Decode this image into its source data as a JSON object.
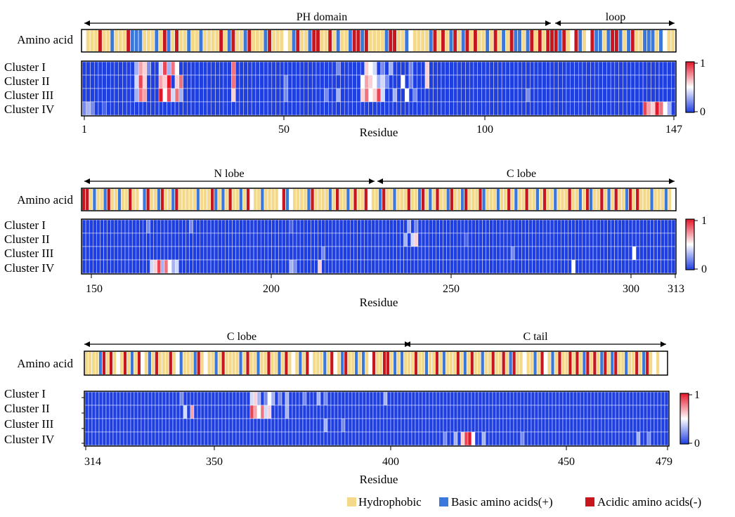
{
  "colors": {
    "hydrophobic": "#f5d98b",
    "basic": "#3b78dc",
    "acidic": "#c8161e",
    "heat_low": "#1f3fe0",
    "heat_mid": "#ffffff",
    "heat_high": "#e5162a"
  },
  "legend": {
    "hydrophobic": "Hydrophobic",
    "basic": "Basic amino acids(+)",
    "acidic": "Acidic amino acids(-)"
  },
  "chart_data": [
    {
      "type": "heatmap",
      "row_label": "Amino acid",
      "cluster_labels": [
        "Cluster I",
        "Cluster II",
        "Cluster III",
        "Cluster IV"
      ],
      "xlabel": "Residue",
      "xlim": [
        1,
        147
      ],
      "xticks": [
        "1",
        "50",
        "100",
        "147"
      ],
      "colorbar_ticks": [
        "1",
        "0"
      ],
      "regions": [
        {
          "label": "PH domain",
          "start": 1,
          "end": 117
        },
        {
          "label": "loop",
          "start": 117,
          "end": 147
        }
      ],
      "hydrophobic": [
        2,
        3,
        4,
        6,
        7,
        9,
        10,
        11,
        16,
        17,
        18,
        20,
        23,
        25,
        26,
        28,
        29,
        31,
        32,
        33,
        34,
        36,
        39,
        40,
        43,
        44,
        45,
        48,
        49,
        50,
        52,
        55,
        56,
        60,
        61,
        63,
        65,
        66,
        72,
        73,
        74,
        75,
        79,
        80,
        83,
        84,
        85,
        86,
        89,
        91,
        94,
        97,
        99,
        100,
        102,
        104,
        106,
        110,
        113,
        115,
        121,
        125,
        130,
        135,
        138,
        139,
        143,
        146,
        147
      ],
      "basic": [
        8,
        13,
        14,
        15,
        19,
        22,
        27,
        30,
        37,
        41,
        46,
        53,
        57,
        64,
        67,
        70,
        76,
        81,
        87,
        92,
        95,
        101,
        105,
        108,
        109,
        111,
        119,
        124,
        128,
        129,
        131,
        134,
        136,
        140,
        141,
        142,
        144
      ],
      "acidic": [
        5,
        12,
        21,
        24,
        35,
        38,
        42,
        47,
        54,
        58,
        59,
        62,
        68,
        69,
        71,
        77,
        78,
        88,
        90,
        93,
        96,
        98,
        103,
        107,
        112,
        114,
        116,
        117,
        118,
        120,
        123,
        127,
        132,
        133,
        137
      ],
      "heat": [
        {
          "cluster": "Cluster I",
          "values": [
            [
              14,
              0.3
            ],
            [
              15,
              0.7
            ],
            [
              16,
              0.6
            ],
            [
              17,
              0.2
            ],
            [
              20,
              0.4
            ],
            [
              21,
              0.9
            ],
            [
              22,
              0.3
            ],
            [
              23,
              0.8
            ],
            [
              24,
              0.5
            ],
            [
              38,
              0.8
            ],
            [
              64,
              0.2
            ],
            [
              71,
              0.6
            ],
            [
              72,
              0.5
            ],
            [
              73,
              0.4
            ],
            [
              75,
              0.2
            ],
            [
              77,
              0.3
            ],
            [
              82,
              0.2
            ],
            [
              86,
              0.6
            ]
          ]
        },
        {
          "cluster": "Cluster II",
          "values": [
            [
              14,
              0.4
            ],
            [
              15,
              0.9
            ],
            [
              16,
              0.6
            ],
            [
              20,
              0.7
            ],
            [
              21,
              0.6
            ],
            [
              22,
              1.0
            ],
            [
              24,
              0.6
            ],
            [
              25,
              0.8
            ],
            [
              38,
              0.8
            ],
            [
              51,
              0.2
            ],
            [
              70,
              0.5
            ],
            [
              71,
              0.7
            ],
            [
              72,
              0.6
            ],
            [
              73,
              0.5
            ],
            [
              74,
              0.3
            ],
            [
              75,
              0.4
            ],
            [
              76,
              0.2
            ],
            [
              80,
              0.5
            ],
            [
              82,
              0.2
            ],
            [
              86,
              0.6
            ]
          ]
        },
        {
          "cluster": "Cluster III",
          "values": [
            [
              14,
              0.3
            ],
            [
              15,
              0.8
            ],
            [
              16,
              0.7
            ],
            [
              20,
              1.0
            ],
            [
              21,
              0.5
            ],
            [
              22,
              0.9
            ],
            [
              23,
              0.4
            ],
            [
              24,
              0.8
            ],
            [
              25,
              0.3
            ],
            [
              38,
              0.6
            ],
            [
              51,
              0.2
            ],
            [
              61,
              0.2
            ],
            [
              64,
              0.3
            ],
            [
              70,
              0.6
            ],
            [
              71,
              0.8
            ],
            [
              72,
              0.5
            ],
            [
              73,
              0.6
            ],
            [
              74,
              0.9
            ],
            [
              75,
              0.4
            ],
            [
              78,
              0.3
            ],
            [
              81,
              0.5
            ],
            [
              83,
              0.2
            ],
            [
              111,
              0.2
            ]
          ]
        },
        {
          "cluster": "Cluster IV",
          "values": [
            [
              1,
              0.2
            ],
            [
              2,
              0.3
            ],
            [
              3,
              0.2
            ],
            [
              6,
              0.1
            ],
            [
              140,
              0.9
            ],
            [
              141,
              0.7
            ],
            [
              142,
              0.6
            ],
            [
              143,
              1.0
            ],
            [
              144,
              0.8
            ],
            [
              145,
              0.5
            ],
            [
              146,
              0.3
            ]
          ]
        }
      ]
    },
    {
      "type": "heatmap",
      "row_label": "Amino acid",
      "cluster_labels": [
        "Cluster I",
        "Cluster II",
        "Cluster III",
        "Cluster IV"
      ],
      "xlabel": "Residue",
      "xlim": [
        148,
        313
      ],
      "xticks": [
        "150",
        "200",
        "250",
        "300",
        "313"
      ],
      "colorbar_ticks": [
        "1",
        "0"
      ],
      "regions": [
        {
          "label": "N lobe",
          "start": 148,
          "end": 230
        },
        {
          "label": "C lobe",
          "start": 230,
          "end": 313
        }
      ],
      "hydrophobic": [
        150,
        152,
        153,
        156,
        157,
        159,
        160,
        162,
        163,
        167,
        168,
        171,
        172,
        175,
        176,
        177,
        178,
        179,
        181,
        182,
        183,
        186,
        188,
        190,
        191,
        193,
        196,
        197,
        199,
        200,
        201,
        202,
        207,
        208,
        209,
        210,
        213,
        214,
        215,
        216,
        218,
        220,
        221,
        223,
        225,
        226,
        229,
        230,
        233,
        234,
        236,
        237,
        238,
        240,
        241,
        244,
        246,
        248,
        249,
        252,
        253,
        256,
        257,
        258,
        261,
        262,
        263,
        265,
        266,
        268,
        270,
        271,
        273,
        274,
        276,
        278,
        279,
        281,
        282,
        283,
        285,
        286,
        288,
        291,
        292,
        294,
        296,
        298,
        299,
        302,
        304,
        305,
        306,
        308,
        309,
        310,
        312
      ],
      "basic": [
        151,
        154,
        158,
        165,
        169,
        173,
        180,
        185,
        187,
        192,
        198,
        205,
        211,
        217,
        222,
        231,
        235,
        242,
        245,
        250,
        254,
        260,
        264,
        269,
        275,
        280,
        287,
        290,
        295,
        300,
        307,
        311
      ],
      "acidic": [
        148,
        149,
        155,
        161,
        166,
        170,
        174,
        184,
        189,
        194,
        204,
        212,
        219,
        224,
        227,
        232,
        239,
        243,
        247,
        251,
        255,
        259,
        267,
        272,
        277,
        284,
        289,
        293,
        297,
        301,
        303
      ],
      "heat": [
        {
          "cluster": "Cluster I",
          "values": [
            [
              166,
              0.2
            ],
            [
              178,
              0.2
            ],
            [
              206,
              0.1
            ],
            [
              239,
              0.3
            ],
            [
              241,
              0.2
            ]
          ]
        },
        {
          "cluster": "Cluster II",
          "values": [
            [
              238,
              0.3
            ],
            [
              240,
              0.4
            ],
            [
              241,
              0.6
            ],
            [
              255,
              0.1
            ]
          ]
        },
        {
          "cluster": "Cluster III",
          "values": [
            [
              215,
              0.2
            ],
            [
              268,
              0.2
            ],
            [
              302,
              0.5
            ]
          ]
        },
        {
          "cluster": "Cluster IV",
          "values": [
            [
              167,
              0.4
            ],
            [
              168,
              0.6
            ],
            [
              169,
              0.9
            ],
            [
              170,
              0.3
            ],
            [
              171,
              0.8
            ],
            [
              172,
              0.5
            ],
            [
              173,
              0.3
            ],
            [
              174,
              0.4
            ],
            [
              206,
              0.3
            ],
            [
              207,
              0.2
            ],
            [
              214,
              0.6
            ],
            [
              285,
              0.5
            ]
          ]
        }
      ]
    },
    {
      "type": "heatmap",
      "row_label": "Amino acid",
      "cluster_labels": [
        "Cluster I",
        "Cluster II",
        "Cluster III",
        "Cluster IV"
      ],
      "xlabel": "Residue",
      "xlim": [
        314,
        479
      ],
      "xticks": [
        "314",
        "350",
        "400",
        "450",
        "479"
      ],
      "colorbar_ticks": [
        "1",
        "0"
      ],
      "regions": [
        {
          "label": "C lobe",
          "start": 314,
          "end": 404
        },
        {
          "label": "C tail",
          "start": 404,
          "end": 479
        }
      ],
      "hydrophobic": [
        314,
        315,
        316,
        317,
        320,
        322,
        324,
        326,
        328,
        331,
        333,
        335,
        336,
        337,
        339,
        342,
        343,
        344,
        347,
        349,
        350,
        352,
        354,
        355,
        356,
        357,
        359,
        361,
        362,
        364,
        365,
        367,
        368,
        370,
        372,
        374,
        376,
        379,
        380,
        381,
        383,
        386,
        389,
        390,
        392,
        394,
        397,
        398,
        401,
        403,
        405,
        406,
        407,
        409,
        410,
        412,
        413,
        415,
        417,
        418,
        419,
        421,
        423,
        425,
        426,
        428,
        429,
        431,
        432,
        434,
        437,
        438,
        440,
        441,
        443,
        446,
        448,
        450,
        451,
        453,
        455,
        458,
        460,
        463,
        466,
        467,
        469,
        470,
        472,
        475,
        477
      ],
      "basic": [
        318,
        327,
        332,
        341,
        345,
        351,
        358,
        363,
        369,
        375,
        382,
        387,
        391,
        393,
        402,
        404,
        411,
        416,
        422,
        427,
        435,
        442,
        447,
        456,
        461,
        464,
        468,
        473
      ],
      "acidic": [
        319,
        321,
        325,
        329,
        334,
        338,
        346,
        353,
        360,
        366,
        371,
        377,
        384,
        388,
        396,
        399,
        400,
        408,
        414,
        420,
        424,
        430,
        433,
        436,
        444,
        449,
        452,
        454,
        457,
        459,
        462,
        465,
        471,
        474
      ],
      "heat": [
        {
          "cluster": "Cluster I",
          "values": [
            [
              341,
              0.2
            ],
            [
              361,
              0.4
            ],
            [
              362,
              0.6
            ],
            [
              363,
              0.3
            ],
            [
              365,
              0.2
            ],
            [
              366,
              0.5
            ],
            [
              367,
              0.3
            ],
            [
              369,
              0.2
            ],
            [
              371,
              0.3
            ],
            [
              376,
              0.2
            ],
            [
              380,
              0.3
            ],
            [
              382,
              0.2
            ],
            [
              399,
              0.3
            ]
          ]
        },
        {
          "cluster": "Cluster II",
          "values": [
            [
              342,
              0.4
            ],
            [
              344,
              0.7
            ],
            [
              361,
              0.9
            ],
            [
              362,
              0.7
            ],
            [
              363,
              0.5
            ],
            [
              364,
              0.8
            ],
            [
              365,
              0.4
            ],
            [
              366,
              0.6
            ],
            [
              371,
              0.3
            ]
          ]
        },
        {
          "cluster": "Cluster III",
          "values": [
            [
              382,
              0.3
            ],
            [
              387,
              0.2
            ]
          ]
        },
        {
          "cluster": "Cluster IV",
          "values": [
            [
              416,
              0.2
            ],
            [
              419,
              0.3
            ],
            [
              421,
              0.6
            ],
            [
              422,
              0.9
            ],
            [
              423,
              1.0
            ],
            [
              424,
              0.5
            ],
            [
              427,
              0.3
            ],
            [
              438,
              0.2
            ],
            [
              471,
              0.3
            ],
            [
              474,
              0.2
            ]
          ]
        }
      ]
    }
  ]
}
